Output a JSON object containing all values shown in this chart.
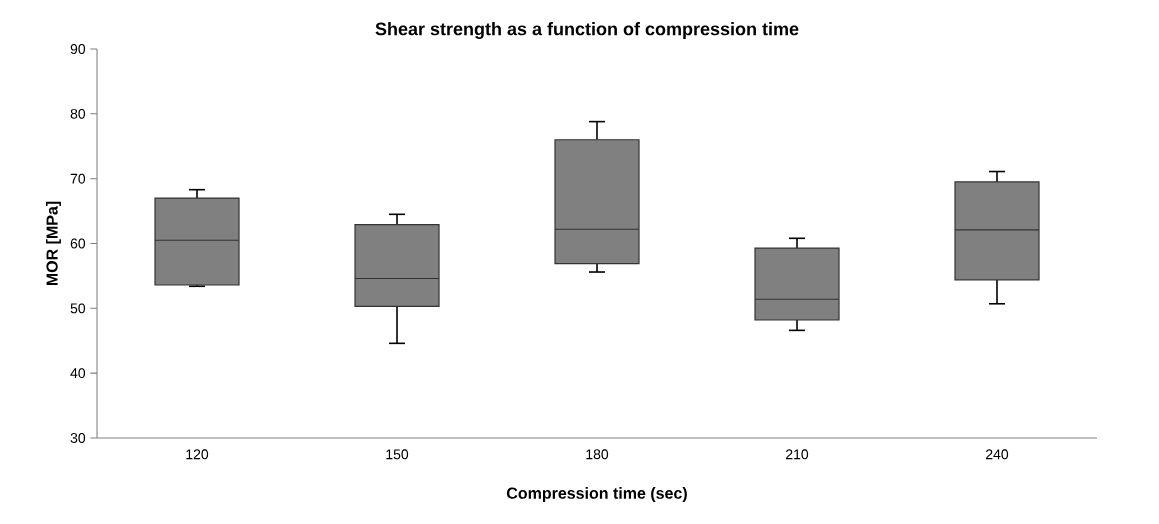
{
  "chart_data": {
    "type": "box",
    "title": "Shear strength as a function of compression time",
    "xlabel": "Compression time (sec)",
    "ylabel": "MOR [MPa]",
    "categories": [
      "120",
      "150",
      "180",
      "210",
      "240"
    ],
    "boxes": [
      {
        "low": 53.4,
        "q1": 53.6,
        "median": 60.5,
        "q3": 67.0,
        "high": 68.3
      },
      {
        "low": 44.6,
        "q1": 50.3,
        "median": 54.6,
        "q3": 62.9,
        "high": 64.5
      },
      {
        "low": 55.6,
        "q1": 56.9,
        "median": 62.2,
        "q3": 76.0,
        "high": 78.8
      },
      {
        "low": 46.6,
        "q1": 48.2,
        "median": 51.4,
        "q3": 59.3,
        "high": 60.8
      },
      {
        "low": 50.7,
        "q1": 54.4,
        "median": 62.1,
        "q3": 69.5,
        "high": 71.1
      }
    ],
    "color": "#808080",
    "ylim": [
      30,
      90
    ],
    "yticks": [
      30,
      40,
      50,
      60,
      70,
      80,
      90
    ]
  }
}
